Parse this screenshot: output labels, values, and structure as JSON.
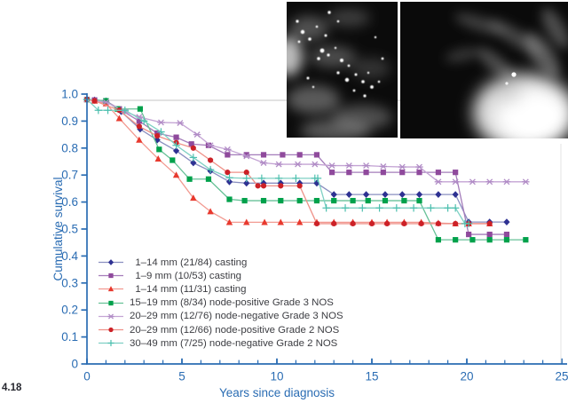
{
  "figure": {
    "number": "4.18"
  },
  "images": [
    {
      "name": "mammogram-casting-calcifications"
    },
    {
      "name": "mammogram-tumor-mass"
    }
  ],
  "colors": {
    "axis": "#2a6cb3",
    "reference_line": "#d9d9d9",
    "legend_text": "#3c3d42",
    "figure_number": "#25262e"
  },
  "chart_data": {
    "type": "line",
    "title": "",
    "xlabel": "Years since diagnosis",
    "ylabel": "Cumulative survival",
    "xlim": [
      0,
      25.3
    ],
    "ylim": [
      0,
      1.0
    ],
    "grid": false,
    "legend_position": "lower-left",
    "reference_line_y": 0.977,
    "x_ticks": {
      "major": [
        0,
        5,
        10,
        15,
        20,
        25
      ],
      "labels": [
        "0",
        "5",
        "10",
        "15",
        "20",
        "25"
      ],
      "minor_step": 1,
      "minor_max": 25
    },
    "y_ticks": {
      "values": [
        0,
        0.1,
        0.2,
        0.3,
        0.4,
        0.5,
        0.6,
        0.7,
        0.8,
        0.9,
        1.0
      ],
      "labels": [
        "0",
        "0.1",
        "0.2",
        "0.3",
        "0.4",
        "0.5",
        "0.6",
        "0.7",
        "0.8",
        "0.9",
        "1.0"
      ]
    },
    "series": [
      {
        "name": " 1–14 mm (21/84) casting",
        "marker": "diamond",
        "color": "#2e3192",
        "line_color": "#8a8fc0",
        "points": [
          [
            0,
            0.98
          ],
          [
            0.4,
            0.978
          ],
          [
            1,
            0.975
          ],
          [
            1.8,
            0.935
          ],
          [
            2.8,
            0.87
          ],
          [
            3.7,
            0.83
          ],
          [
            4.7,
            0.79
          ],
          [
            5.6,
            0.745
          ],
          [
            6.5,
            0.715
          ],
          [
            7.5,
            0.675
          ],
          [
            8.4,
            0.67
          ],
          [
            9.3,
            0.67
          ],
          [
            10.2,
            0.67
          ],
          [
            11.2,
            0.67
          ],
          [
            12.1,
            0.67
          ],
          [
            13,
            0.628
          ],
          [
            13.8,
            0.628
          ],
          [
            14.7,
            0.628
          ],
          [
            15.7,
            0.628
          ],
          [
            16.6,
            0.628
          ],
          [
            17.5,
            0.628
          ],
          [
            18.5,
            0.628
          ],
          [
            19.4,
            0.628
          ],
          [
            20.1,
            0.526
          ],
          [
            21.2,
            0.526
          ],
          [
            22.1,
            0.526
          ]
        ]
      },
      {
        "name": " 1–9 mm (10/53) casting",
        "marker": "square",
        "color": "#8f4a9c",
        "line_color": "#a47cba",
        "points": [
          [
            0,
            0.98
          ],
          [
            0.4,
            0.978
          ],
          [
            1,
            0.975
          ],
          [
            1.7,
            0.945
          ],
          [
            2.75,
            0.9
          ],
          [
            3.7,
            0.855
          ],
          [
            4.7,
            0.84
          ],
          [
            5.5,
            0.815
          ],
          [
            6.4,
            0.81
          ],
          [
            7.4,
            0.775
          ],
          [
            8.4,
            0.775
          ],
          [
            9.3,
            0.775
          ],
          [
            10.3,
            0.775
          ],
          [
            11.2,
            0.775
          ],
          [
            12.1,
            0.775
          ],
          [
            12.9,
            0.71
          ],
          [
            13.8,
            0.71
          ],
          [
            14.7,
            0.71
          ],
          [
            15.6,
            0.71
          ],
          [
            16.6,
            0.71
          ],
          [
            17.5,
            0.71
          ],
          [
            18.5,
            0.71
          ],
          [
            19.4,
            0.71
          ],
          [
            20.1,
            0.48
          ],
          [
            21.2,
            0.48
          ],
          [
            22.1,
            0.48
          ]
        ]
      },
      {
        "name": " 1–14 mm (11/31) casting",
        "marker": "triangle",
        "color": "#e8392e",
        "line_color": "#f29a91",
        "points": [
          [
            0,
            0.98
          ],
          [
            0.4,
            0.975
          ],
          [
            1,
            0.965
          ],
          [
            1.7,
            0.91
          ],
          [
            2.75,
            0.83
          ],
          [
            3.75,
            0.76
          ],
          [
            4.7,
            0.7
          ],
          [
            5.6,
            0.615
          ],
          [
            6.5,
            0.565
          ],
          [
            7.5,
            0.525
          ],
          [
            8.4,
            0.525
          ],
          [
            9.35,
            0.525
          ],
          [
            10.2,
            0.525
          ],
          [
            11.2,
            0.525
          ],
          [
            12.1,
            0.525
          ],
          [
            13,
            0.525
          ],
          [
            14,
            0.525
          ],
          [
            15,
            0.525
          ],
          [
            15.8,
            0.525
          ],
          [
            16.7,
            0.525
          ],
          [
            17.6,
            0.525
          ],
          [
            18.5,
            0.522
          ],
          [
            19.4,
            0.52
          ],
          [
            20.1,
            0.52
          ],
          [
            21.2,
            0.52
          ]
        ]
      },
      {
        "name": "15–19 mm (8/34) node-positive Grade 3 NOS",
        "marker": "square",
        "color": "#00a14b",
        "line_color": "#67c197",
        "points": [
          [
            0,
            0.98
          ],
          [
            1,
            0.975
          ],
          [
            1.6,
            0.945
          ],
          [
            2.8,
            0.945
          ],
          [
            3.8,
            0.795
          ],
          [
            4.5,
            0.755
          ],
          [
            5.4,
            0.685
          ],
          [
            6.4,
            0.685
          ],
          [
            7.5,
            0.61
          ],
          [
            8.3,
            0.605
          ],
          [
            9.3,
            0.605
          ],
          [
            10.2,
            0.605
          ],
          [
            11.2,
            0.605
          ],
          [
            12.1,
            0.605
          ],
          [
            13,
            0.605
          ],
          [
            14,
            0.605
          ],
          [
            14.8,
            0.605
          ],
          [
            15.7,
            0.605
          ],
          [
            16.7,
            0.605
          ],
          [
            17.5,
            0.605
          ],
          [
            18.5,
            0.46
          ],
          [
            19.4,
            0.46
          ],
          [
            20.3,
            0.46
          ],
          [
            21.2,
            0.46
          ],
          [
            22.1,
            0.46
          ],
          [
            23.1,
            0.46
          ]
        ]
      },
      {
        "name": "20–29 mm (12/76) node-negative Grade 3 NOS",
        "marker": "asterisk",
        "color": "#b18cc6",
        "line_color": "#c4a4d4",
        "points": [
          [
            0,
            0.98
          ],
          [
            1,
            0.97
          ],
          [
            2,
            0.935
          ],
          [
            2.75,
            0.915
          ],
          [
            3.9,
            0.895
          ],
          [
            4.9,
            0.893
          ],
          [
            5.8,
            0.85
          ],
          [
            6.5,
            0.81
          ],
          [
            7.4,
            0.795
          ],
          [
            8.4,
            0.77
          ],
          [
            9.3,
            0.745
          ],
          [
            10.1,
            0.74
          ],
          [
            11.1,
            0.74
          ],
          [
            12,
            0.74
          ],
          [
            12.9,
            0.735
          ],
          [
            13.8,
            0.735
          ],
          [
            14.7,
            0.735
          ],
          [
            15.6,
            0.732
          ],
          [
            16.6,
            0.73
          ],
          [
            17.5,
            0.73
          ],
          [
            18.5,
            0.675
          ],
          [
            19.4,
            0.675
          ],
          [
            20.3,
            0.675
          ],
          [
            21.2,
            0.675
          ],
          [
            22.1,
            0.675
          ],
          [
            23.1,
            0.675
          ]
        ]
      },
      {
        "name": "20–29 mm (12/66) node-positive Grade 2 NOS",
        "marker": "circle",
        "color": "#cc2127",
        "line_color": "#ef9188",
        "points": [
          [
            0,
            0.98
          ],
          [
            0.4,
            0.975
          ],
          [
            1.7,
            0.94
          ],
          [
            2.75,
            0.88
          ],
          [
            3.7,
            0.845
          ],
          [
            4.7,
            0.82
          ],
          [
            5.6,
            0.8
          ],
          [
            6.5,
            0.755
          ],
          [
            7.4,
            0.71
          ],
          [
            8.4,
            0.71
          ],
          [
            9,
            0.66
          ],
          [
            9.3,
            0.66
          ],
          [
            10.2,
            0.66
          ],
          [
            11.2,
            0.66
          ],
          [
            12.1,
            0.52
          ],
          [
            13,
            0.52
          ],
          [
            14,
            0.52
          ],
          [
            15,
            0.52
          ],
          [
            15.8,
            0.52
          ],
          [
            16.7,
            0.52
          ],
          [
            17.6,
            0.52
          ],
          [
            18.5,
            0.52
          ],
          [
            19.4,
            0.52
          ],
          [
            20.1,
            0.52
          ],
          [
            21.2,
            0.52
          ]
        ]
      },
      {
        "name": "30–49 mm (7/25) node-negative Grade 2 NOS",
        "marker": "plus",
        "color": "#4bbfae",
        "line_color": "#7fd0c4",
        "points": [
          [
            0,
            0.98
          ],
          [
            0.6,
            0.94
          ],
          [
            1.1,
            0.94
          ],
          [
            2,
            0.94
          ],
          [
            3,
            0.9
          ],
          [
            3.9,
            0.86
          ],
          [
            4.7,
            0.81
          ],
          [
            5.6,
            0.765
          ],
          [
            6.5,
            0.72
          ],
          [
            7.5,
            0.69
          ],
          [
            8.4,
            0.688
          ],
          [
            9.2,
            0.688
          ],
          [
            10.1,
            0.688
          ],
          [
            11,
            0.688
          ],
          [
            12,
            0.688
          ],
          [
            12.15,
            0.688
          ],
          [
            12.6,
            0.578
          ],
          [
            13.6,
            0.578
          ],
          [
            14.5,
            0.578
          ],
          [
            15.4,
            0.578
          ],
          [
            16.3,
            0.578
          ],
          [
            17.2,
            0.578
          ],
          [
            18.1,
            0.578
          ],
          [
            19,
            0.578
          ],
          [
            19.4,
            0.578
          ],
          [
            19.9,
            0.52
          ],
          [
            20.1,
            0.52
          ]
        ]
      }
    ]
  }
}
